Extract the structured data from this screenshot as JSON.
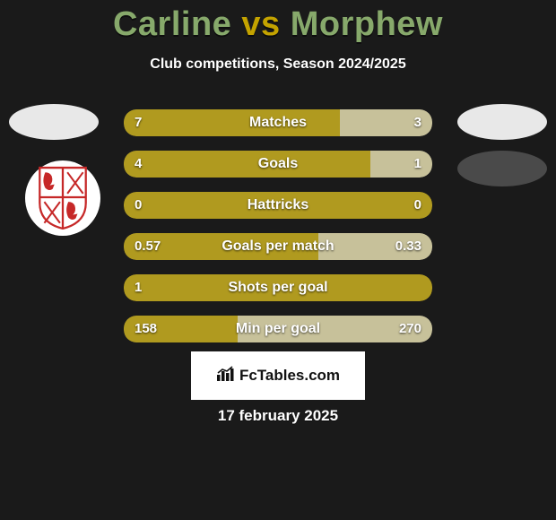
{
  "title": {
    "left": "Carline",
    "vs": "vs",
    "right": "Morphew"
  },
  "subtitle": "Club competitions, Season 2024/2025",
  "colors": {
    "left_bar": "#b09a1f",
    "right_bar": "#c7c19a",
    "track": "#4a4a4a",
    "title_name": "#87a96b",
    "title_vs": "#c4a300"
  },
  "avatars": {
    "left1_bg": "#e8e8e8",
    "right1_bg": "#e8e8e8",
    "right2_bg": "#4a4a4a"
  },
  "stats": [
    {
      "label": "Matches",
      "left_val": "7",
      "right_val": "3",
      "left_pct": 70,
      "right_pct": 30,
      "full_left": false
    },
    {
      "label": "Goals",
      "left_val": "4",
      "right_val": "1",
      "left_pct": 80,
      "right_pct": 20,
      "full_left": false
    },
    {
      "label": "Hattricks",
      "left_val": "0",
      "right_val": "0",
      "left_pct": 100,
      "right_pct": 0,
      "full_left": true
    },
    {
      "label": "Goals per match",
      "left_val": "0.57",
      "right_val": "0.33",
      "left_pct": 63,
      "right_pct": 37,
      "full_left": false
    },
    {
      "label": "Shots per goal",
      "left_val": "1",
      "right_val": "",
      "left_pct": 100,
      "right_pct": 0,
      "full_left": true
    },
    {
      "label": "Min per goal",
      "left_val": "158",
      "right_val": "270",
      "left_pct": 37,
      "right_pct": 63,
      "full_left": false
    }
  ],
  "footer_logo_text": "FcTables.com",
  "footer_logo_icon": "chart-icon",
  "date": "17 february 2025"
}
